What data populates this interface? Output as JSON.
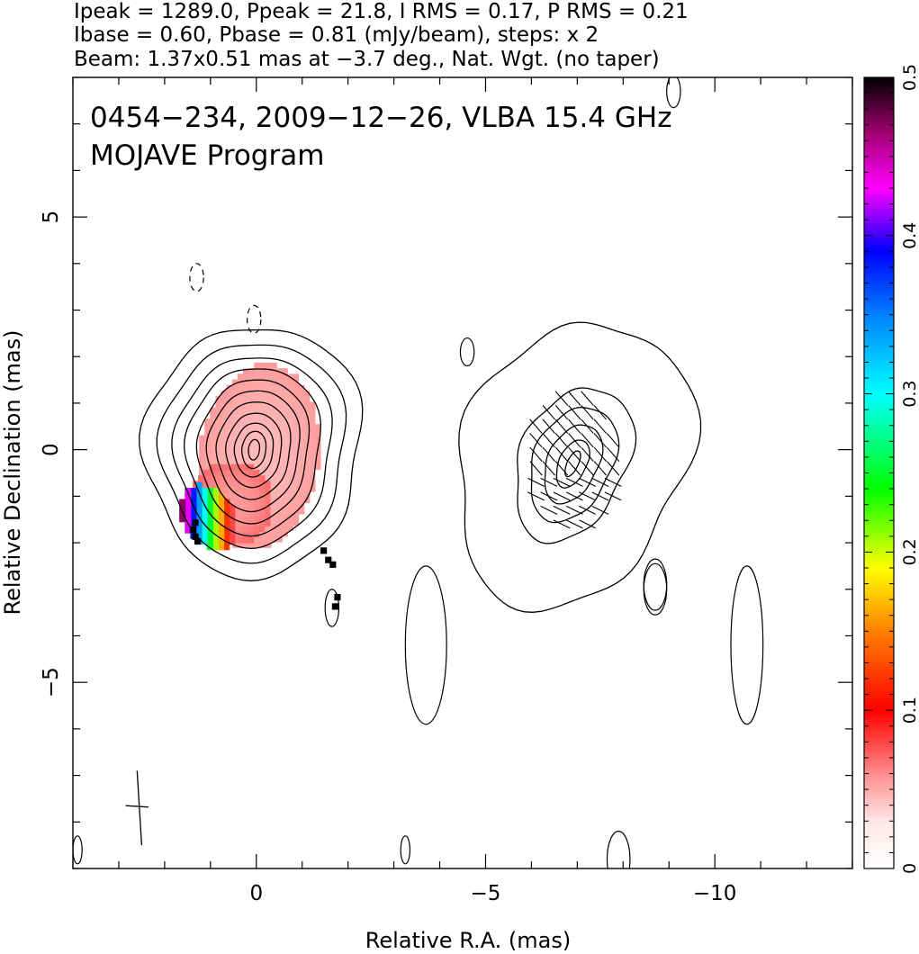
{
  "header": {
    "line1": "Ipeak = 1289.0, Ppeak = 21.8, I RMS = 0.17, P RMS = 0.21",
    "line2": "Ibase = 0.60, Pbase = 0.81 (mJy/beam), steps: x 2",
    "line3": "Beam: 1.37x0.51 mas at −3.7 deg., Nat. Wgt. (no taper)"
  },
  "chart_data": {
    "type": "heatmap",
    "title": "0454−234, 2009−12−26, VLBA 15.4 GHz",
    "subtitle": "MOJAVE Program",
    "xlabel": "Relative R.A. (mas)",
    "ylabel": "Relative Declination (mas)",
    "xlim": [
      4,
      -13
    ],
    "ylim": [
      -9,
      8
    ],
    "x_ticks": [
      0,
      -5,
      -10
    ],
    "x_tick_labels": [
      "0",
      "−5",
      "−10"
    ],
    "y_ticks": [
      5,
      0,
      -5
    ],
    "y_tick_labels": [
      "5",
      "0",
      "−5"
    ],
    "colorbar": {
      "range": [
        0,
        0.5
      ],
      "ticks": [
        0,
        0.1,
        0.2,
        0.3,
        0.4,
        0.5
      ],
      "tick_labels": [
        "0",
        "0.1",
        "0.2",
        "0.3",
        "0.4",
        "0.5"
      ]
    },
    "contour_base_mJy_per_beam": 0.6,
    "contour_step_factor": 2,
    "peak_intensity_mJy_per_beam": 1289.0,
    "components": [
      {
        "name": "core",
        "center": [
          0.05,
          0.0
        ],
        "contour_radii": [
          [
            2.35,
            2.7
          ],
          [
            2.0,
            2.35
          ],
          [
            1.7,
            2.05
          ],
          [
            1.45,
            1.8
          ],
          [
            1.2,
            1.55
          ],
          [
            1.0,
            1.3
          ],
          [
            0.8,
            1.05
          ],
          [
            0.6,
            0.8
          ],
          [
            0.42,
            0.58
          ],
          [
            0.26,
            0.4
          ],
          [
            0.12,
            0.22
          ]
        ]
      },
      {
        "name": "western feature",
        "center": [
          -6.9,
          -0.3
        ],
        "contour_radii": [
          [
            2.4,
            3.2
          ],
          [
            1.15,
            1.75
          ],
          [
            0.85,
            1.3
          ],
          [
            0.55,
            0.9
          ],
          [
            0.3,
            0.55
          ],
          [
            0.12,
            0.3
          ]
        ]
      }
    ],
    "fractional_polarization_regions": [
      {
        "x": 0.0,
        "y": 0.1,
        "value": 0.03
      },
      {
        "x": -0.3,
        "y": -1.0,
        "value": 0.05
      },
      {
        "x": 0.5,
        "y": -1.2,
        "value": 0.08
      },
      {
        "x": 1.0,
        "y": -1.5,
        "value": 0.15
      },
      {
        "x": 1.5,
        "y": -1.2,
        "value": 0.3
      },
      {
        "x": 1.55,
        "y": -1.5,
        "value": 0.38
      },
      {
        "x": 1.4,
        "y": -1.8,
        "value": 0.5
      },
      {
        "x": -1.5,
        "y": -2.3,
        "value": 0.5
      },
      {
        "x": -1.7,
        "y": -3.2,
        "value": 0.5
      }
    ]
  }
}
